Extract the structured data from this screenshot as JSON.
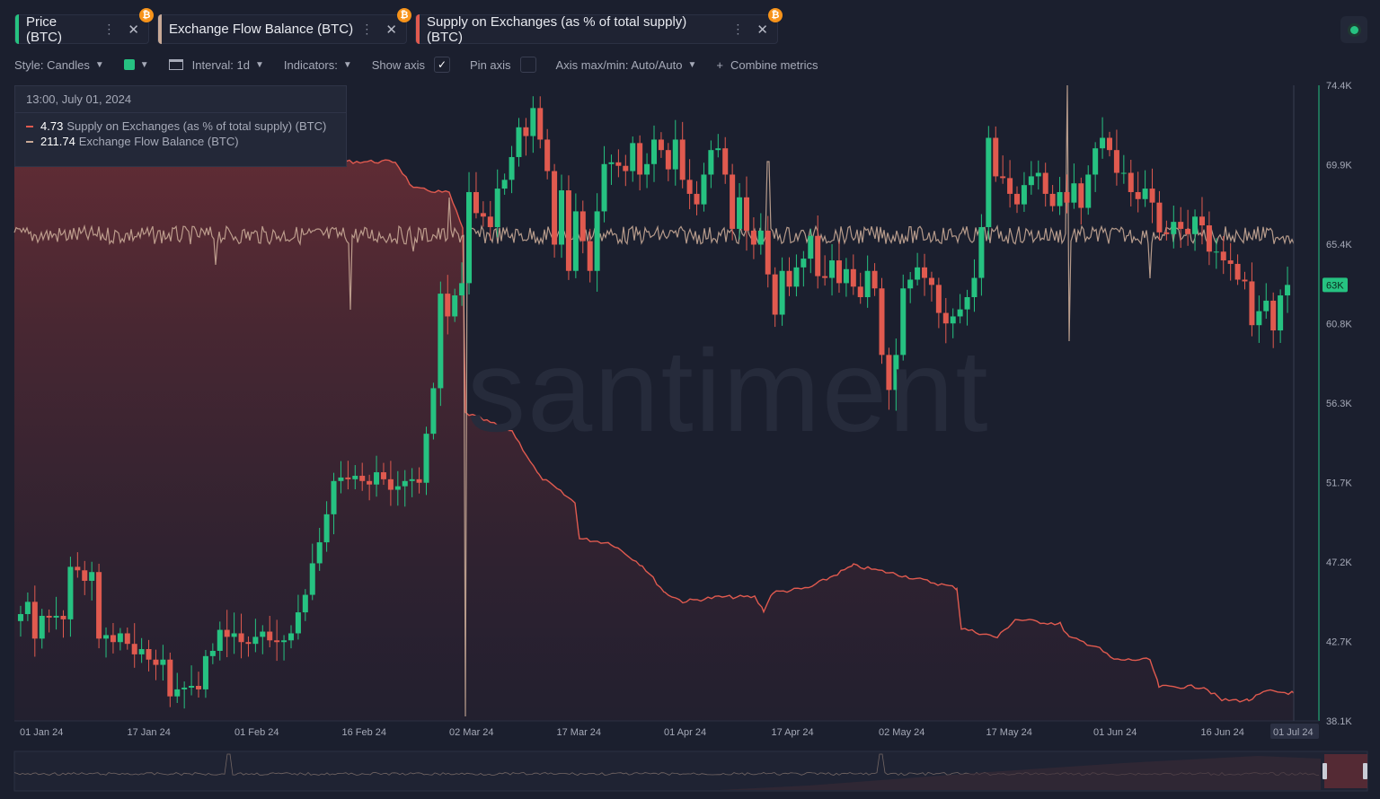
{
  "tabs": [
    {
      "label": "Price (BTC)",
      "color": "#26c281",
      "badge": "₿"
    },
    {
      "label": "Exchange Flow Balance (BTC)",
      "color": "#c8a996",
      "badge": "₿"
    },
    {
      "label": "Supply on Exchanges (as % of total supply) (BTC)",
      "color": "#e05a4f",
      "badge": "₿"
    }
  ],
  "toolbar": {
    "style": "Style: Candles",
    "interval": "Interval: 1d",
    "indicators": "Indicators:",
    "show_axis": "Show axis",
    "pin_axis": "Pin axis",
    "axis_maxmin": "Axis max/min: Auto/Auto",
    "combine": "Combine metrics"
  },
  "tooltip": {
    "date": "13:00, July 01, 2024",
    "rows": [
      {
        "value": "4.73",
        "name": "Supply on Exchanges (as % of total supply) (BTC)",
        "color": "#e05a4f"
      },
      {
        "value": "211.74",
        "name": "Exchange Flow Balance (BTC)",
        "color": "#c8a996"
      }
    ]
  },
  "watermark": "santiment",
  "chart_data": {
    "type": "candlestick",
    "y_ticks": [
      "74.4K",
      "69.9K",
      "65.4K",
      "60.8K",
      "56.3K",
      "51.7K",
      "47.2K",
      "42.7K",
      "38.1K"
    ],
    "ylim": [
      38100,
      74400
    ],
    "x_ticks": [
      "01 Jan 24",
      "17 Jan 24",
      "01 Feb 24",
      "16 Feb 24",
      "02 Mar 24",
      "17 Mar 24",
      "01 Apr 24",
      "17 Apr 24",
      "02 May 24",
      "17 May 24",
      "01 Jun 24",
      "16 Jun 24",
      "01 Jul 24"
    ],
    "current_price_label": "63K",
    "current_price": 63000,
    "price_close": [
      44200,
      44900,
      42800,
      44100,
      44000,
      44100,
      43900,
      46900,
      46700,
      46100,
      46600,
      42800,
      43000,
      42600,
      43100,
      42500,
      41900,
      42200,
      41600,
      41300,
      41600,
      39500,
      39900,
      40000,
      40100,
      39900,
      41800,
      42100,
      43300,
      42900,
      43100,
      42600,
      42500,
      42900,
      43200,
      42700,
      42600,
      42700,
      43100,
      44300,
      45300,
      47100,
      48300,
      49900,
      51800,
      52000,
      51900,
      52100,
      51800,
      51600,
      52300,
      51900,
      51300,
      51500,
      51800,
      51900,
      51700,
      54500,
      57100,
      62500,
      61200,
      62400,
      63100,
      68300,
      67100,
      66900,
      66300,
      68500,
      69000,
      70300,
      72000,
      71500,
      73100,
      71300,
      69500,
      65300,
      68400,
      63800,
      67200,
      65500,
      63800,
      67200,
      69900,
      70000,
      69800,
      69500,
      71100,
      69300,
      69900,
      71300,
      70700,
      69600,
      71300,
      69000,
      68200,
      67600,
      69300,
      70700,
      70800,
      69300,
      66200,
      68000,
      66100,
      65300,
      66100,
      63600,
      61300,
      63800,
      62900,
      64000,
      64500,
      65800,
      63500,
      63400,
      64400,
      63100,
      63900,
      62900,
      62300,
      63800,
      62800,
      59000,
      57000,
      59000,
      62800,
      63300,
      64000,
      63400,
      63000,
      61400,
      60800,
      61200,
      61600,
      62300,
      63400,
      66300,
      71400,
      69200,
      69100,
      68200,
      67600,
      68700,
      69200,
      69400,
      68200,
      67500,
      68300,
      67700,
      68800,
      67400,
      69300,
      70800,
      71400,
      70700,
      69400,
      69400,
      68300,
      67900,
      68500,
      67700,
      66000,
      65900,
      66600,
      66200,
      65900,
      66900,
      66400,
      64900,
      64900,
      64400,
      64200,
      63300,
      63200,
      60700,
      61500,
      62100,
      60400,
      62400,
      63000
    ],
    "flow_balance_note": "oscillates around zero",
    "supply_on_exchanges_pct_note": "declines over period; last value 4.73"
  }
}
